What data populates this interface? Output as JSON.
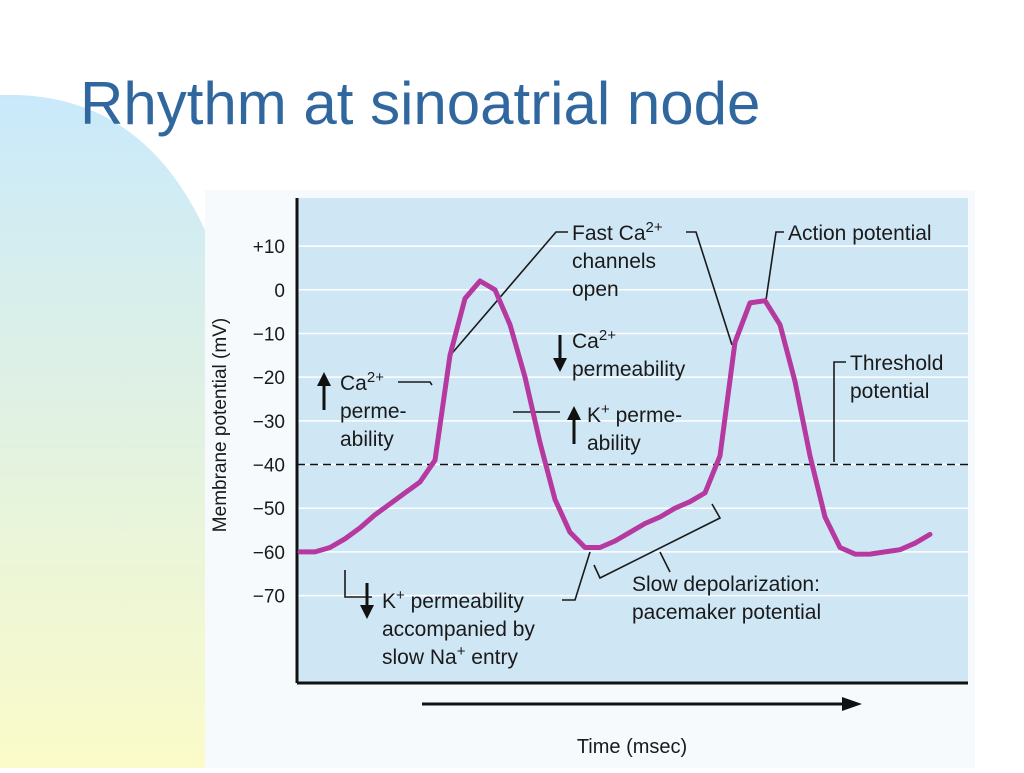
{
  "chart_data": {
    "type": "line",
    "title": "Rhythm at sinoatrial node",
    "y_label": "Membrane potential (mV)",
    "x_label": "Time (msec)",
    "categories": [
      null,
      null,
      null,
      null,
      null,
      null,
      null,
      null,
      null,
      null,
      null,
      null,
      null,
      null,
      null,
      null,
      null,
      null,
      null,
      null,
      null,
      null,
      null,
      null,
      null,
      null,
      null,
      null,
      null,
      null,
      null,
      null,
      null,
      null,
      null,
      null,
      null,
      null,
      null,
      null,
      null,
      null,
      null
    ],
    "values": [
      -60,
      -60,
      -59,
      -57,
      -54.5,
      -51.5,
      -49,
      -46.5,
      -44,
      -39,
      -15,
      -2,
      2,
      0,
      -8,
      -20,
      -35,
      -48,
      -55.5,
      -59,
      -59,
      -57.5,
      -55.5,
      -53.5,
      -52,
      -50,
      -48.5,
      -46.5,
      -38,
      -12,
      -3,
      -2.5,
      -8,
      -21,
      -38,
      -52,
      -59,
      -60.5,
      -60.5,
      -60,
      -59.5,
      -58,
      -56
    ],
    "color": "#b5399e",
    "ylim": [
      -90,
      21
    ],
    "yticks": [
      {
        "value": 10,
        "label": "+10"
      },
      0,
      {
        "value": -10,
        "label": "−10"
      },
      {
        "value": -20,
        "label": "−20"
      },
      {
        "value": -30,
        "label": "−30"
      },
      {
        "value": -40,
        "label": "−40"
      },
      {
        "value": -50,
        "label": "−50"
      },
      {
        "value": -60,
        "label": "−60"
      },
      {
        "value": -70,
        "label": "−70"
      }
    ],
    "grid": true,
    "threshold": -40,
    "annotations": [
      {
        "lines": [
          [
            "Fast Ca",
            {
              "sup": "2+"
            }
          ],
          [
            "channels"
          ],
          [
            "open"
          ]
        ]
      },
      {
        "lines": [
          [
            "Action potential"
          ]
        ]
      },
      {
        "lines": [
          [
            "Ca",
            {
              "sup": "2+"
            }
          ],
          [
            "permeability"
          ]
        ]
      },
      {
        "lines": [
          [
            "Threshold"
          ],
          [
            "potential"
          ]
        ]
      },
      {
        "lines": [
          [
            "Ca",
            {
              "sup": "2+"
            }
          ],
          [
            "perme-"
          ],
          [
            "ability"
          ]
        ]
      },
      {
        "lines": [
          [
            "K",
            {
              "sup": "+"
            },
            " perme-"
          ],
          [
            "ability"
          ]
        ]
      },
      {
        "lines": [
          [
            "K",
            {
              "sup": "+"
            },
            " permeability"
          ],
          [
            "accompanied by"
          ],
          [
            "slow Na",
            {
              "sup": "+"
            },
            " entry"
          ]
        ]
      },
      {
        "lines": [
          [
            "Slow depolarization:"
          ],
          [
            "pacemaker potential"
          ]
        ]
      }
    ]
  }
}
